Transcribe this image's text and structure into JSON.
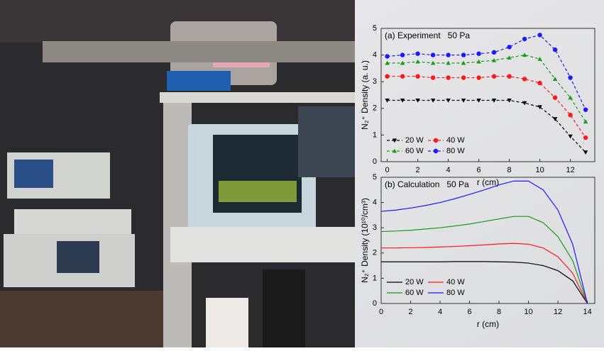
{
  "chart_data": [
    {
      "type": "line",
      "title": "(a) Experiment   50 Pa",
      "x_label": "r (cm)",
      "y_label": "N₂⁺ Density (a. u.)",
      "x": [
        0,
        1,
        2,
        3,
        4,
        5,
        6,
        7,
        8,
        9,
        10,
        11,
        12,
        13
      ],
      "xlim": [
        -0.4,
        13.6
      ],
      "xticks": [
        0,
        2,
        4,
        6,
        8,
        10,
        12
      ],
      "ylim": [
        0,
        5
      ],
      "yticks": [
        0,
        1,
        2,
        3,
        4,
        5
      ],
      "line_style": "dashed",
      "legend": "lower left",
      "series": [
        {
          "name": "20 W",
          "color": "#000000",
          "marker": "triangle-down",
          "values": [
            2.3,
            2.3,
            2.3,
            2.3,
            2.3,
            2.3,
            2.3,
            2.3,
            2.3,
            2.2,
            2.05,
            1.6,
            0.95,
            0.35
          ]
        },
        {
          "name": "40 W",
          "color": "#ff1a1a",
          "marker": "circle",
          "values": [
            3.2,
            3.2,
            3.2,
            3.15,
            3.15,
            3.15,
            3.15,
            3.2,
            3.2,
            3.1,
            2.95,
            2.4,
            1.75,
            0.9
          ]
        },
        {
          "name": "60 W",
          "color": "#1a9a1a",
          "marker": "triangle-up",
          "values": [
            3.7,
            3.7,
            3.75,
            3.7,
            3.7,
            3.7,
            3.75,
            3.8,
            3.9,
            4.0,
            3.85,
            3.1,
            2.4,
            1.5
          ]
        },
        {
          "name": "80 W",
          "color": "#1a1aff",
          "marker": "circle",
          "values": [
            3.95,
            4.0,
            4.05,
            4.0,
            4.0,
            4.0,
            4.05,
            4.1,
            4.3,
            4.6,
            4.75,
            4.2,
            3.15,
            1.95
          ]
        }
      ]
    },
    {
      "type": "line",
      "title": "(b) Calculation   50 Pa",
      "x_label": "r (cm)",
      "y_label": "N₂⁺ Density (10¹⁰/cm³)",
      "x": [
        0,
        1,
        2,
        3,
        4,
        5,
        6,
        7,
        8,
        9,
        10,
        11,
        12,
        13,
        14
      ],
      "xlim": [
        0,
        14.5
      ],
      "xticks": [
        0,
        2,
        4,
        6,
        8,
        10,
        12,
        14
      ],
      "ylim": [
        0,
        5
      ],
      "yticks": [
        0,
        1,
        2,
        3,
        4,
        5
      ],
      "line_style": "solid",
      "legend": "lower left",
      "series": [
        {
          "name": "20 W",
          "color": "#000000",
          "values": [
            1.65,
            1.65,
            1.65,
            1.65,
            1.65,
            1.66,
            1.66,
            1.66,
            1.65,
            1.64,
            1.6,
            1.5,
            1.3,
            0.9,
            0
          ]
        },
        {
          "name": "40 W",
          "color": "#ff1a1a",
          "values": [
            2.2,
            2.2,
            2.21,
            2.22,
            2.24,
            2.26,
            2.29,
            2.32,
            2.36,
            2.38,
            2.35,
            2.2,
            1.85,
            1.2,
            0
          ]
        },
        {
          "name": "60 W",
          "color": "#1a9a1a",
          "values": [
            2.85,
            2.87,
            2.9,
            2.95,
            3.0,
            3.07,
            3.15,
            3.25,
            3.35,
            3.45,
            3.45,
            3.2,
            2.65,
            1.7,
            0
          ]
        },
        {
          "name": "80 W",
          "color": "#1a1aff",
          "values": [
            3.65,
            3.7,
            3.78,
            3.88,
            4.0,
            4.15,
            4.32,
            4.5,
            4.7,
            4.85,
            4.85,
            4.5,
            3.7,
            2.35,
            0
          ]
        }
      ]
    }
  ]
}
